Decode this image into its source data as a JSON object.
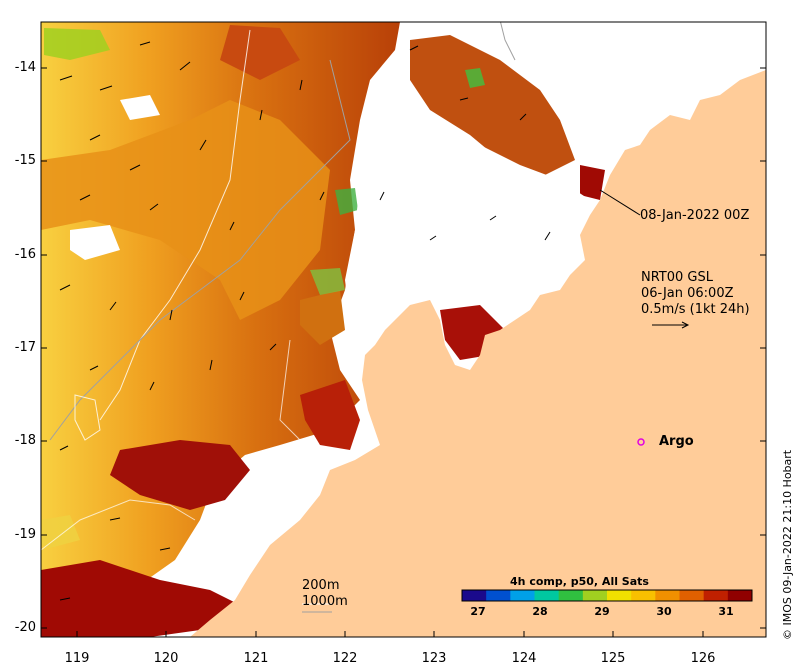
{
  "map": {
    "y_axis_ticks": [
      "-14",
      "-15",
      "-16",
      "-17",
      "-18",
      "-19",
      "-20"
    ],
    "x_axis_ticks": [
      "119",
      "120",
      "121",
      "122",
      "123",
      "124",
      "125",
      "126"
    ],
    "date_label": "08-Jan-2022 00Z",
    "current_label": {
      "line1": "NRT00 GSL",
      "line2": "06-Jan 06:00Z",
      "line3": "0.5m/s (1kt 24h)"
    },
    "argo_label": "Argo",
    "depth_legend": {
      "contour1": "200m",
      "contour2": "1000m"
    },
    "colorbar": {
      "title": "4h comp, p50, All Sats",
      "ticks": [
        "27",
        "28",
        "29",
        "30",
        "31"
      ],
      "colors": [
        "#1a0a8c",
        "#0050d0",
        "#00a0e8",
        "#00c8a0",
        "#30c040",
        "#a0d020",
        "#f0e000",
        "#f8c000",
        "#f09000",
        "#e06000",
        "#c02000",
        "#900000"
      ]
    },
    "credit": "© IMOS 09-Jan-2022 21:10 Hobart",
    "colors": {
      "land": "#ffcc99",
      "no_data": "#ffffff",
      "argo_marker": "#e000e0"
    }
  }
}
